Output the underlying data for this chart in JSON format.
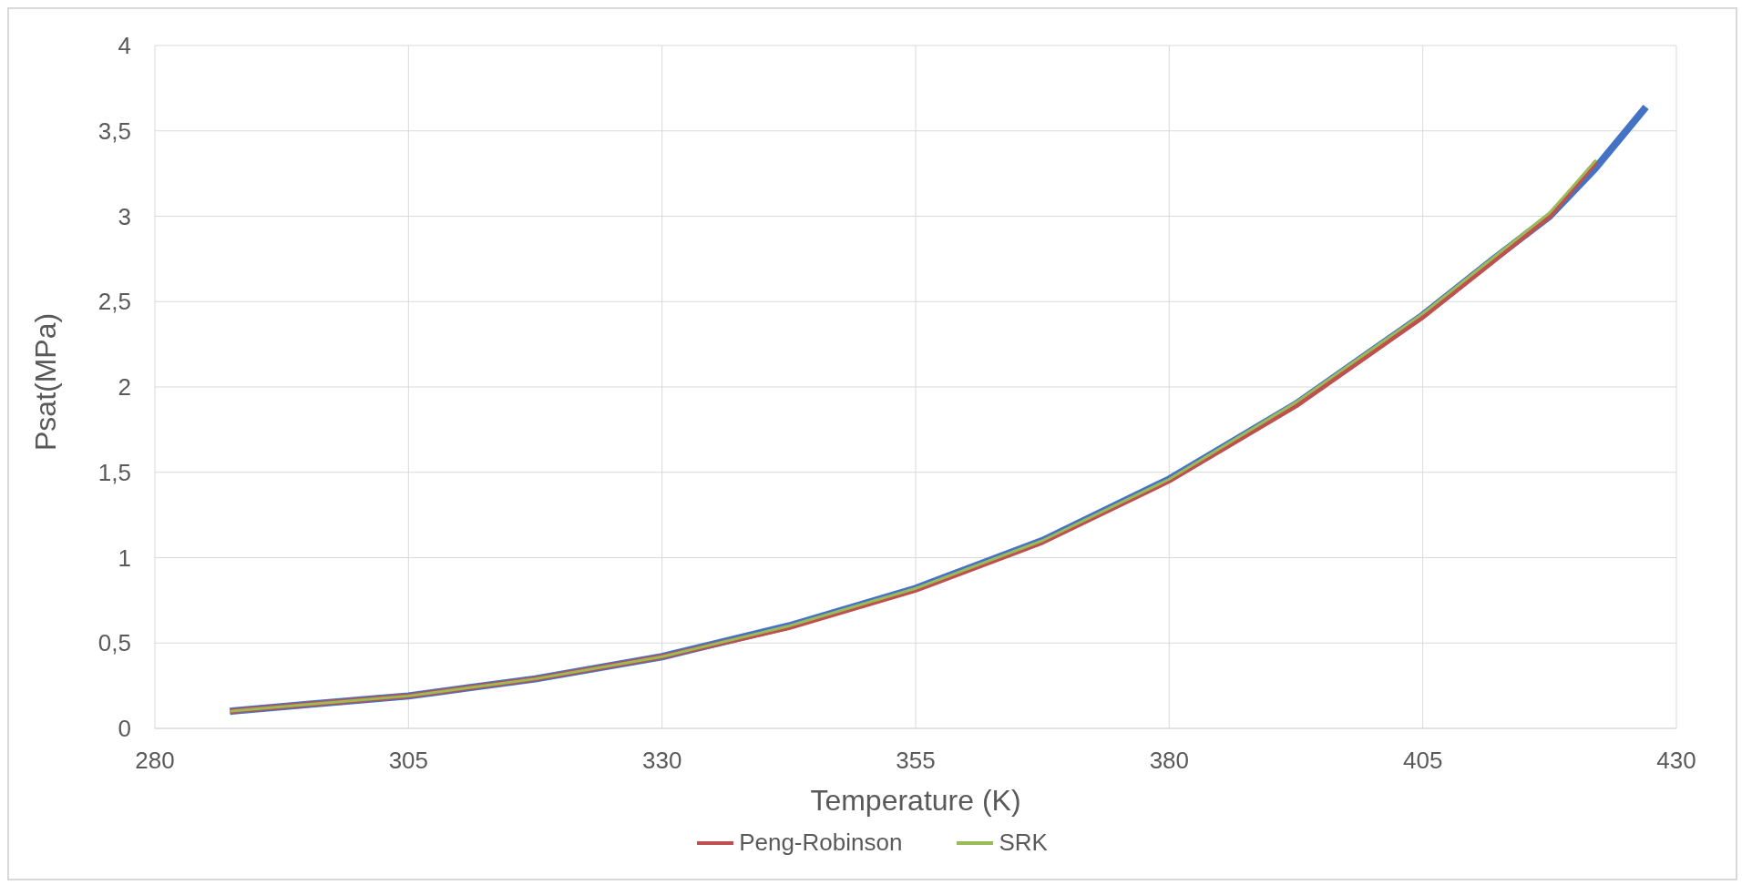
{
  "chart_data": {
    "type": "line",
    "xlabel": "Temperature (K)",
    "ylabel": "Psat(MPa)",
    "xlim": [
      280,
      430
    ],
    "xticks": [
      280,
      305,
      330,
      355,
      380,
      405,
      430
    ],
    "ylim": [
      0,
      4
    ],
    "yticks": [
      0,
      {
        "value": 0.5,
        "label": "0,5"
      },
      1,
      {
        "value": 1.5,
        "label": "1,5"
      },
      2,
      {
        "value": 2.5,
        "label": "2,5"
      },
      3,
      {
        "value": 3.5,
        "label": "3,5"
      },
      4
    ],
    "grid": true,
    "legend": "bottom",
    "marker": "none",
    "line_style": "solid",
    "series": [
      {
        "color": "#4472c4",
        "x": [
          287.4,
          295,
          305,
          317.5,
          330,
          342.5,
          355,
          367.5,
          380,
          392.5,
          405,
          412,
          417.5,
          422,
          427
        ],
        "values": [
          0.1,
          0.14,
          0.19,
          0.29,
          0.42,
          0.6,
          0.82,
          1.1,
          1.46,
          1.9,
          2.42,
          2.75,
          3.0,
          3.28,
          3.64
        ]
      },
      {
        "name": "Peng-Robinson",
        "color": "#c0504d",
        "x": [
          287.4,
          295,
          305,
          317.5,
          330,
          342.5,
          355,
          367.5,
          380,
          392.5,
          405,
          412,
          417.5,
          422.1
        ],
        "values": [
          0.1,
          0.14,
          0.19,
          0.29,
          0.42,
          0.59,
          0.81,
          1.09,
          1.45,
          1.89,
          2.41,
          2.74,
          3.0,
          3.32
        ]
      },
      {
        "name": "SRK",
        "color": "#9bbb59",
        "x": [
          287.4,
          295,
          305,
          317.5,
          330,
          342.5,
          355,
          367.5,
          380,
          392.5,
          405,
          412,
          417.5,
          422.1
        ],
        "values": [
          0.1,
          0.14,
          0.19,
          0.29,
          0.42,
          0.6,
          0.82,
          1.1,
          1.46,
          1.91,
          2.43,
          2.76,
          3.02,
          3.33
        ]
      }
    ]
  }
}
